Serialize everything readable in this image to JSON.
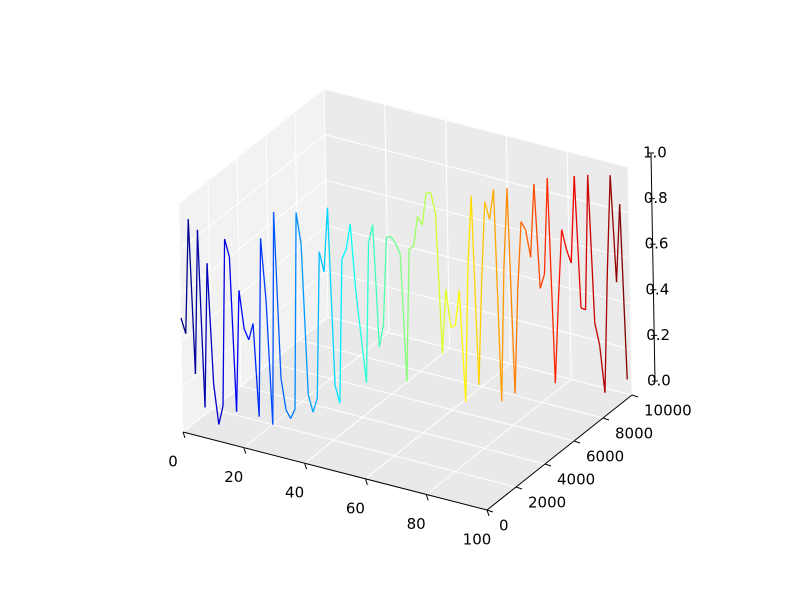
{
  "chart_data": {
    "type": "line3d",
    "colormap": "jet",
    "x": [
      0,
      1,
      2,
      3,
      4,
      5,
      6,
      7,
      8,
      9,
      10,
      11,
      12,
      13,
      14,
      15,
      16,
      17,
      18,
      19,
      20,
      21,
      22,
      23,
      24,
      25,
      26,
      27,
      28,
      29,
      30,
      31,
      32,
      33,
      34,
      35,
      36,
      37,
      38,
      39,
      40,
      41,
      42,
      43,
      44,
      45,
      46,
      47,
      48,
      49,
      50,
      51,
      52,
      53,
      54,
      55,
      56,
      57,
      58,
      59,
      60,
      61,
      62,
      63,
      64,
      65,
      66,
      67,
      68,
      69,
      70,
      71,
      72,
      73,
      74,
      75,
      76,
      77,
      78,
      79,
      80,
      81,
      82,
      83,
      84,
      85,
      86,
      87,
      88,
      89,
      90,
      91,
      92,
      93,
      94,
      95,
      96,
      97,
      98,
      99
    ],
    "y": [
      0,
      100,
      200,
      300,
      400,
      500,
      600,
      700,
      800,
      900,
      1000,
      1100,
      1200,
      1300,
      1400,
      1500,
      1600,
      1700,
      1800,
      1900,
      2000,
      2100,
      2200,
      2300,
      2400,
      2500,
      2600,
      2700,
      2800,
      2900,
      3000,
      3100,
      3200,
      3300,
      3400,
      3500,
      3600,
      3700,
      3800,
      3900,
      4000,
      4100,
      4200,
      4300,
      4400,
      4500,
      4600,
      4700,
      4800,
      4900,
      5000,
      5100,
      5200,
      5300,
      5400,
      5500,
      5600,
      5700,
      5800,
      5900,
      6000,
      6100,
      6200,
      6300,
      6400,
      6500,
      6600,
      6700,
      6800,
      6900,
      7000,
      7100,
      7200,
      7300,
      7400,
      7500,
      7600,
      7700,
      7800,
      7900,
      8000,
      8100,
      8200,
      8300,
      8400,
      8500,
      8600,
      8700,
      8800,
      8900,
      9000,
      9100,
      9200,
      9300,
      9400,
      9500,
      9600,
      9700,
      9800,
      9900
    ],
    "z": [
      0.5,
      0.43,
      0.93,
      0.25,
      0.88,
      0.1,
      0.73,
      0.2,
      0.02,
      0.1,
      0.83,
      0.75,
      0.07,
      0.6,
      0.43,
      0.38,
      0.45,
      0.04,
      0.82,
      0.54,
      0.0,
      0.93,
      0.2,
      0.06,
      0.02,
      0.06,
      0.92,
      0.78,
      0.12,
      0.04,
      0.1,
      0.74,
      0.65,
      0.93,
      0.15,
      0.07,
      0.7,
      0.74,
      0.85,
      0.55,
      0.35,
      0.15,
      0.76,
      0.84,
      0.3,
      0.4,
      0.78,
      0.78,
      0.75,
      0.7,
      0.14,
      0.72,
      0.73,
      0.86,
      0.82,
      0.96,
      0.96,
      0.87,
      0.25,
      0.53,
      0.36,
      0.37,
      0.52,
      0.03,
      0.62,
      0.93,
      0.1,
      0.55,
      0.9,
      0.82,
      0.95,
      0.02,
      0.6,
      0.95,
      0.05,
      0.5,
      0.8,
      0.76,
      0.64,
      0.96,
      0.5,
      0.56,
      0.98,
      0.08,
      0.44,
      0.75,
      0.66,
      0.6,
      0.98,
      0.4,
      0.39,
      0.98,
      0.33,
      0.23,
      0.02,
      0.55,
      0.97,
      0.5,
      0.84,
      0.07
    ],
    "xlim": [
      0,
      100
    ],
    "ylim": [
      0,
      10000
    ],
    "zlim": [
      0,
      1
    ],
    "xticks": [
      0,
      20,
      40,
      60,
      80,
      100
    ],
    "yticks": [
      0,
      2000,
      4000,
      6000,
      8000,
      10000
    ],
    "zticks": [
      {
        "value": 0,
        "label": "0.0"
      },
      0.2,
      0.4,
      0.6,
      0.8,
      {
        "value": 1,
        "label": "1.0"
      }
    ]
  }
}
